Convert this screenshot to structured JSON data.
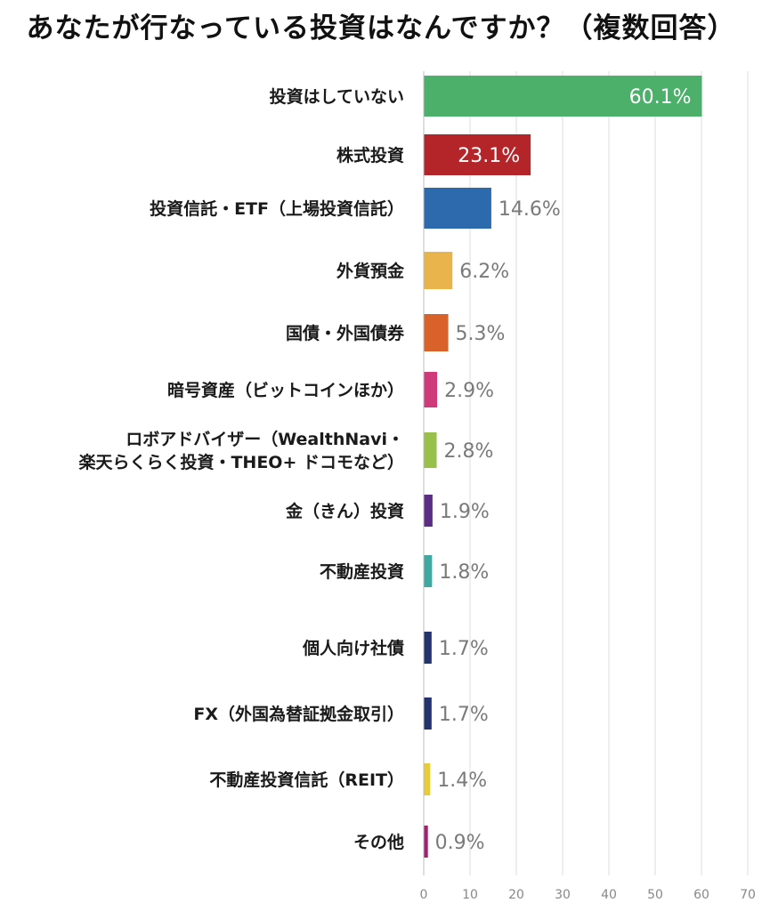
{
  "title": "あなたが行なっている投資はなんですか？（複数回答）",
  "chart_data": {
    "type": "bar",
    "orientation": "horizontal",
    "title": "あなたが行なっている投資はなんですか？（複数回答）",
    "xlim": [
      0,
      70
    ],
    "x_ticks": [
      "0",
      "10",
      "20",
      "30",
      "40",
      "50",
      "60",
      "70"
    ],
    "grid": true,
    "categories": [
      [
        "投資はしていない"
      ],
      [
        "株式投資"
      ],
      [
        "投資信託・ETF（上場投資信託）"
      ],
      [
        "外貨預金"
      ],
      [
        "国債・外国債券"
      ],
      [
        "暗号資産（ビットコインほか）"
      ],
      [
        "ロボアドバイザー（WealthNavi・",
        "楽天らくらく投資・THEO+ ドコモなど）"
      ],
      [
        "金（きん）投資"
      ],
      [
        "不動産投資"
      ],
      [
        "個人向け社債"
      ],
      [
        "FX（外国為替証拠金取引）"
      ],
      [
        "不動産投資信託（REIT）"
      ],
      [
        "その他"
      ]
    ],
    "values": [
      60.1,
      23.1,
      14.6,
      6.2,
      5.3,
      2.9,
      2.8,
      1.9,
      1.8,
      1.7,
      1.7,
      1.4,
      0.9
    ],
    "value_labels": [
      "60.1%",
      "23.1%",
      "14.6%",
      "6.2%",
      "5.3%",
      "2.9%",
      "2.8%",
      "1.9%",
      "1.8%",
      "1.7%",
      "1.7%",
      "1.4%",
      "0.9%"
    ],
    "colors": [
      "#4caf6a",
      "#b4252a",
      "#2d69ad",
      "#e9b44c",
      "#d9622b",
      "#cf3b7a",
      "#98c04a",
      "#5c2d84",
      "#40a8a0",
      "#24336e",
      "#24336e",
      "#e8cb3a",
      "#a3206e"
    ]
  }
}
